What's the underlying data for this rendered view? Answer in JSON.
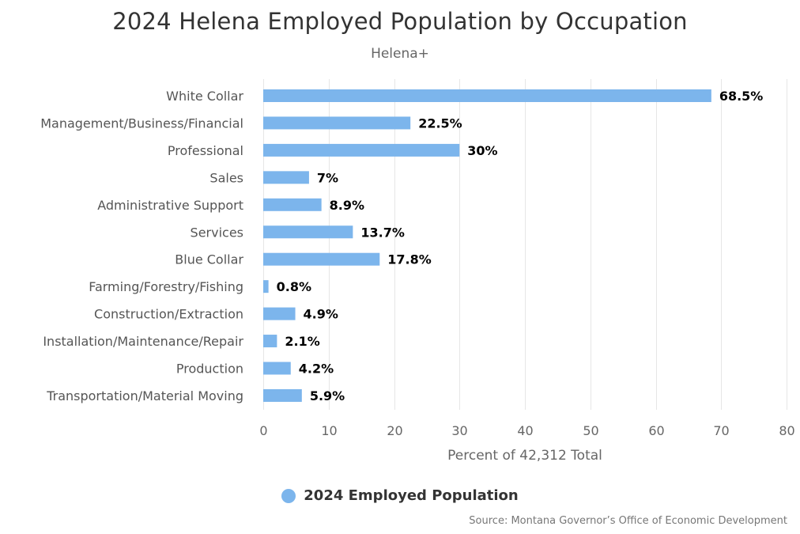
{
  "chart_data": {
    "type": "bar",
    "orientation": "horizontal",
    "title": "2024 Helena Employed Population by Occupation",
    "subtitle": "Helena+",
    "categories": [
      "White Collar",
      "Management/Business/Financial",
      "Professional",
      "Sales",
      "Administrative Support",
      "Services",
      "Blue Collar",
      "Farming/Forestry/Fishing",
      "Construction/Extraction",
      "Installation/Maintenance/Repair",
      "Production",
      "Transportation/Material Moving"
    ],
    "series": [
      {
        "name": "2024 Employed Population",
        "values": [
          68.5,
          22.5,
          30,
          7,
          8.9,
          13.7,
          17.8,
          0.8,
          4.9,
          2.1,
          4.2,
          5.9
        ],
        "labels": [
          "68.5%",
          "22.5%",
          "30%",
          "7%",
          "8.9%",
          "13.7%",
          "17.8%",
          "0.8%",
          "4.9%",
          "2.1%",
          "4.2%",
          "5.9%"
        ]
      }
    ],
    "xlabel": "Percent of 42,312 Total",
    "xlim": [
      0,
      80
    ],
    "xticks": [
      0,
      10,
      20,
      30,
      40,
      50,
      60,
      70,
      80
    ],
    "grid": true,
    "legend_position": "bottom-center",
    "bar_color": "#7cb5ec",
    "grid_color": "#e6e6e6",
    "source": "Source: Montana Governor’s Office of Economic Development"
  }
}
